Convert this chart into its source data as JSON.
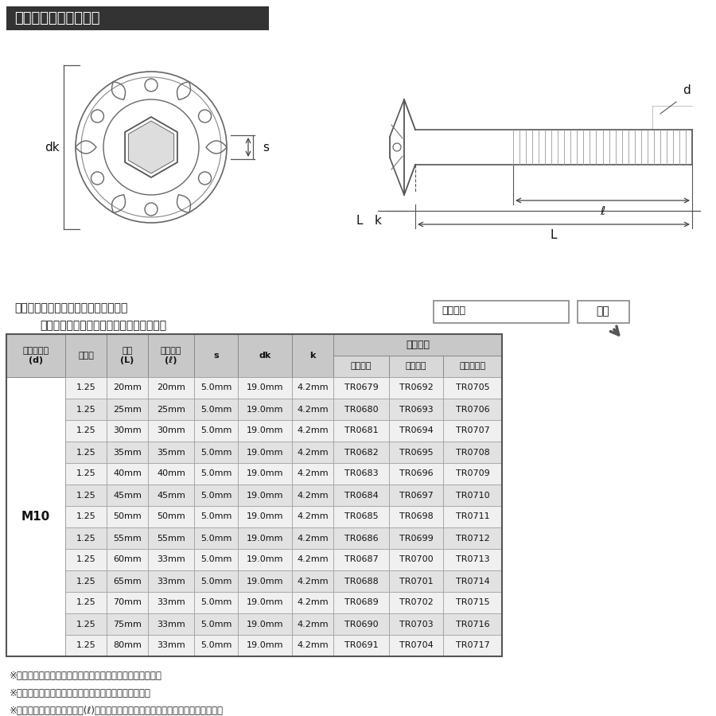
{
  "title": "ラインアップ＆サイズ",
  "title_bg": "#333333",
  "title_color": "#ffffff",
  "search_text1": "ストア内検索に商品番号を入力すると",
  "search_text2": "お探しの商品に素早くアクセスできます。",
  "search_box_label": "商品番号",
  "search_btn_label": "検索",
  "bolt_label": "M10",
  "rows": [
    [
      "1.25",
      "20mm",
      "20mm",
      "5.0mm",
      "19.0mm",
      "4.2mm",
      "TR0679",
      "TR0692",
      "TR0705"
    ],
    [
      "1.25",
      "25mm",
      "25mm",
      "5.0mm",
      "19.0mm",
      "4.2mm",
      "TR0680",
      "TR0693",
      "TR0706"
    ],
    [
      "1.25",
      "30mm",
      "30mm",
      "5.0mm",
      "19.0mm",
      "4.2mm",
      "TR0681",
      "TR0694",
      "TR0707"
    ],
    [
      "1.25",
      "35mm",
      "35mm",
      "5.0mm",
      "19.0mm",
      "4.2mm",
      "TR0682",
      "TR0695",
      "TR0708"
    ],
    [
      "1.25",
      "40mm",
      "40mm",
      "5.0mm",
      "19.0mm",
      "4.2mm",
      "TR0683",
      "TR0696",
      "TR0709"
    ],
    [
      "1.25",
      "45mm",
      "45mm",
      "5.0mm",
      "19.0mm",
      "4.2mm",
      "TR0684",
      "TR0697",
      "TR0710"
    ],
    [
      "1.25",
      "50mm",
      "50mm",
      "5.0mm",
      "19.0mm",
      "4.2mm",
      "TR0685",
      "TR0698",
      "TR0711"
    ],
    [
      "1.25",
      "55mm",
      "55mm",
      "5.0mm",
      "19.0mm",
      "4.2mm",
      "TR0686",
      "TR0699",
      "TR0712"
    ],
    [
      "1.25",
      "60mm",
      "33mm",
      "5.0mm",
      "19.0mm",
      "4.2mm",
      "TR0687",
      "TR0700",
      "TR0713"
    ],
    [
      "1.25",
      "65mm",
      "33mm",
      "5.0mm",
      "19.0mm",
      "4.2mm",
      "TR0688",
      "TR0701",
      "TR0714"
    ],
    [
      "1.25",
      "70mm",
      "33mm",
      "5.0mm",
      "19.0mm",
      "4.2mm",
      "TR0689",
      "TR0702",
      "TR0715"
    ],
    [
      "1.25",
      "75mm",
      "33mm",
      "5.0mm",
      "19.0mm",
      "4.2mm",
      "TR0690",
      "TR0703",
      "TR0716"
    ],
    [
      "1.25",
      "80mm",
      "33mm",
      "5.0mm",
      "19.0mm",
      "4.2mm",
      "TR0691",
      "TR0704",
      "TR0717"
    ]
  ],
  "footnotes": [
    "※記載の重量は平均値です。個体により誤差がございます。",
    "※虹色は個体差により着色が異なる場合がございます。",
    "※製造過程の都合でネジ長さ(ℓ)が変わる場合がございます。予めご了承ください。"
  ],
  "bg_color": "#ffffff",
  "hdr_bg": "#c8c8c8",
  "hdr_bg2": "#d8d8d8",
  "row_odd": "#f0f0f0",
  "row_even": "#e2e2e2"
}
